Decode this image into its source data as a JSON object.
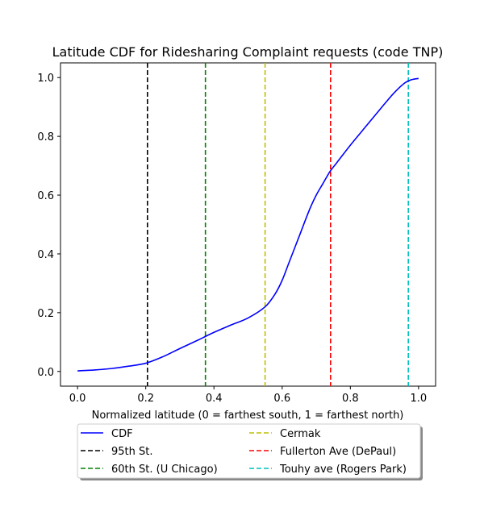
{
  "chart_data": {
    "type": "line",
    "title": "Latitude CDF for Ridesharing Complaint  requests (code TNP)",
    "xlabel": "Normalized latitude (0 = farthest south, 1 = farthest north)",
    "ylabel": "",
    "xlim": [
      -0.05,
      1.05
    ],
    "ylim": [
      -0.05,
      1.05
    ],
    "xticks": [
      0.0,
      0.2,
      0.4,
      0.6,
      0.8,
      1.0
    ],
    "xtick_labels": [
      "0.0",
      "0.2",
      "0.4",
      "0.6",
      "0.8",
      "1.0"
    ],
    "yticks": [
      0.0,
      0.2,
      0.4,
      0.6,
      0.8,
      1.0
    ],
    "ytick_labels": [
      "0.0",
      "0.2",
      "0.4",
      "0.6",
      "0.8",
      "1.0"
    ],
    "grid": false,
    "legend_position": "bottom-center, outside plot, 2 columns",
    "series": [
      {
        "name": "CDF",
        "color": "#0000ff",
        "style": "solid",
        "x": [
          0.0,
          0.05,
          0.1,
          0.15,
          0.2,
          0.25,
          0.3,
          0.35,
          0.4,
          0.45,
          0.5,
          0.55,
          0.58,
          0.6,
          0.62,
          0.65,
          0.68,
          0.7,
          0.72,
          0.74,
          0.76,
          0.8,
          0.85,
          0.9,
          0.93,
          0.96,
          0.98,
          1.0
        ],
        "y": [
          0.002,
          0.005,
          0.01,
          0.018,
          0.028,
          0.05,
          0.078,
          0.105,
          0.133,
          0.158,
          0.182,
          0.22,
          0.265,
          0.31,
          0.37,
          0.46,
          0.55,
          0.6,
          0.64,
          0.68,
          0.71,
          0.77,
          0.84,
          0.91,
          0.95,
          0.982,
          0.993,
          0.997
        ]
      }
    ],
    "reference_lines": [
      {
        "name": "95th St.",
        "x": 0.205,
        "color": "#000000",
        "style": "dashed"
      },
      {
        "name": "60th St. (U Chicago)",
        "x": 0.375,
        "color": "#008000",
        "style": "dashed"
      },
      {
        "name": "Cermak",
        "x": 0.55,
        "color": "#bfbf00",
        "style": "dashed"
      },
      {
        "name": "Fullerton Ave (DePaul)",
        "x": 0.742,
        "color": "#ff0000",
        "style": "dashed"
      },
      {
        "name": "Touhy ave (Rogers Park)",
        "x": 0.97,
        "color": "#00bfbf",
        "style": "dashed"
      }
    ]
  }
}
